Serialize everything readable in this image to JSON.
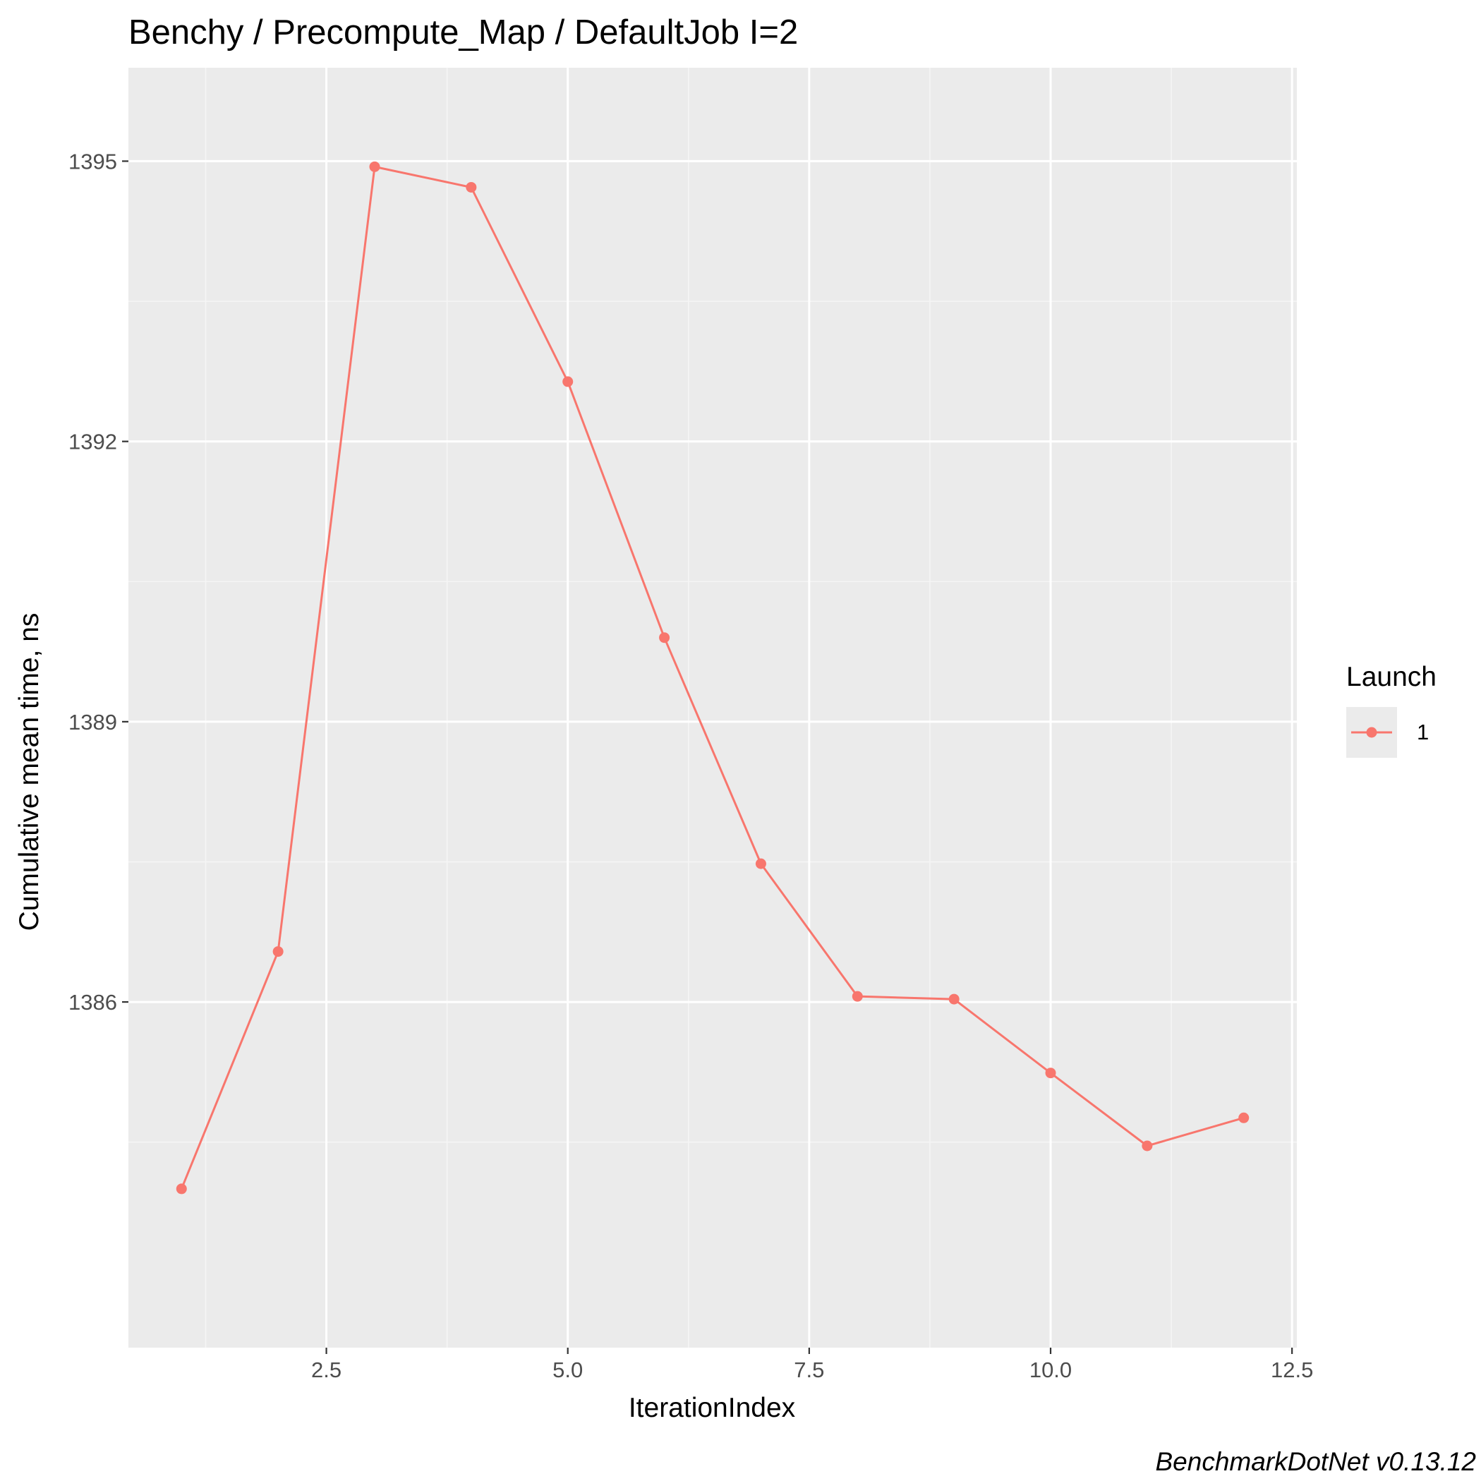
{
  "chart_data": {
    "type": "line",
    "title": "Benchy / Precompute_Map / DefaultJob I=2",
    "xlabel": "IterationIndex",
    "ylabel": "Cumulative mean time, ns",
    "caption": "BenchmarkDotNet v0.13.12",
    "xlim": [
      0.45,
      12.55
    ],
    "ylim": [
      1382.3,
      1396.0
    ],
    "x_ticks": [
      2.5,
      5.0,
      7.5,
      10.0,
      12.5
    ],
    "x_tick_labels": [
      "2.5",
      "5.0",
      "7.5",
      "10.0",
      "12.5"
    ],
    "y_ticks": [
      1386,
      1389,
      1392,
      1395
    ],
    "y_tick_labels": [
      "1386",
      "1389",
      "1392",
      "1395"
    ],
    "grid": true,
    "legend": {
      "title": "Launch",
      "placement": "right",
      "entries": [
        "1"
      ]
    },
    "series": [
      {
        "name": "1",
        "color": "#f8766d",
        "x": [
          1,
          2,
          3,
          4,
          5,
          6,
          7,
          8,
          9,
          10,
          11,
          12
        ],
        "y": [
          1384.0,
          1386.54,
          1394.94,
          1394.72,
          1392.64,
          1389.9,
          1387.48,
          1386.06,
          1386.03,
          1385.24,
          1384.46,
          1384.76
        ]
      }
    ]
  },
  "colors": {
    "panel_background": "#ebebeb",
    "grid_major": "#ffffff",
    "grid_minor": "#f5f5f5",
    "tick_mark": "#333333",
    "series": "#f8766d"
  }
}
